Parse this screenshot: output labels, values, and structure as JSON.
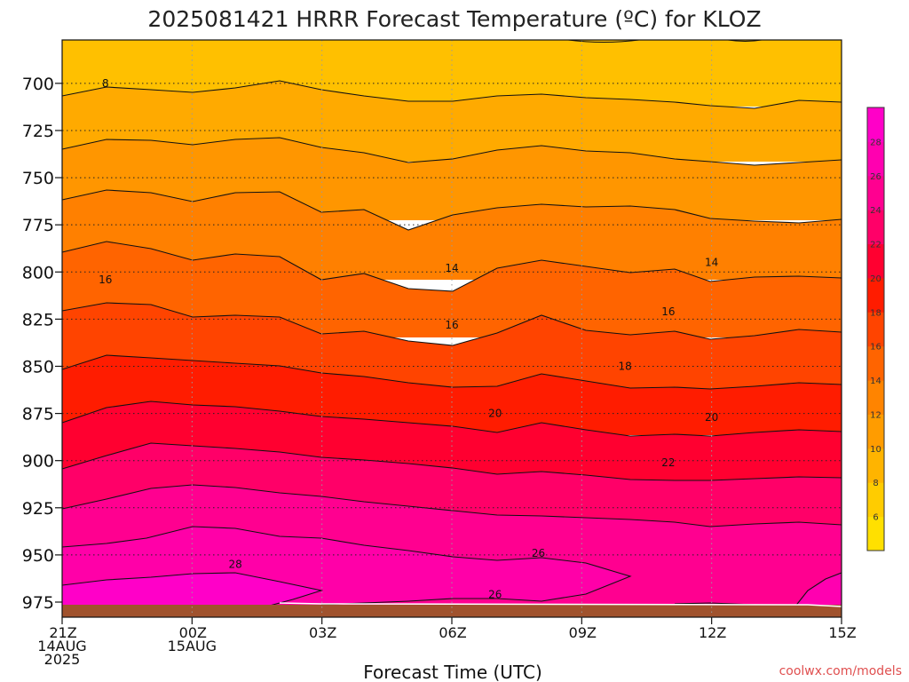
{
  "chart_data": {
    "type": "contour",
    "title": "2025081421 HRRR Forecast Temperature (ºC) for KLOZ",
    "xlabel": "Forecast Time (UTC)",
    "ylabel": "",
    "credit": "coolwx.com/models",
    "x_ticks": [
      {
        "hour": 0,
        "lines": [
          "21Z",
          "14AUG",
          "2025"
        ]
      },
      {
        "hour": 3,
        "lines": [
          "00Z",
          "15AUG"
        ]
      },
      {
        "hour": 6,
        "lines": [
          "03Z"
        ]
      },
      {
        "hour": 9,
        "lines": [
          "06Z"
        ]
      },
      {
        "hour": 12,
        "lines": [
          "09Z"
        ]
      },
      {
        "hour": 15,
        "lines": [
          "12Z"
        ]
      },
      {
        "hour": 18,
        "lines": [
          "15Z"
        ]
      }
    ],
    "xlim": [
      0,
      18
    ],
    "y_ticks": [
      700,
      725,
      750,
      775,
      800,
      825,
      850,
      875,
      900,
      925,
      950,
      975
    ],
    "ylim": [
      677,
      983
    ],
    "ground_level_hpa": 975,
    "contour_levels": [
      6,
      8,
      10,
      12,
      14,
      16,
      18,
      20,
      22,
      24,
      26,
      28
    ],
    "colorbar": {
      "labels": [
        6,
        8,
        10,
        12,
        14,
        16,
        18,
        20,
        22,
        24,
        26,
        28
      ],
      "colors": [
        "#FFE000",
        "#FFCC00",
        "#FFB400",
        "#FF9C00",
        "#FF8400",
        "#FF6400",
        "#FF4400",
        "#FF1C00",
        "#FF0030",
        "#FF0068",
        "#FF0090",
        "#FF00B0",
        "#FF00C8"
      ]
    },
    "contour_labels": [
      {
        "value": "8",
        "hour": 1,
        "hpa": 700
      },
      {
        "value": "16",
        "hour": 1,
        "hpa": 804
      },
      {
        "value": "14",
        "hour": 9,
        "hpa": 798
      },
      {
        "value": "14",
        "hour": 15,
        "hpa": 795
      },
      {
        "value": "16",
        "hour": 9,
        "hpa": 828
      },
      {
        "value": "16",
        "hour": 14,
        "hpa": 821
      },
      {
        "value": "18",
        "hour": 13,
        "hpa": 850
      },
      {
        "value": "20",
        "hour": 10,
        "hpa": 875
      },
      {
        "value": "20",
        "hour": 15,
        "hpa": 877
      },
      {
        "value": "22",
        "hour": 14,
        "hpa": 901
      },
      {
        "value": "26",
        "hour": 11,
        "hpa": 949
      },
      {
        "value": "26",
        "hour": 10,
        "hpa": 971
      },
      {
        "value": "28",
        "hour": 4,
        "hpa": 955
      }
    ]
  }
}
